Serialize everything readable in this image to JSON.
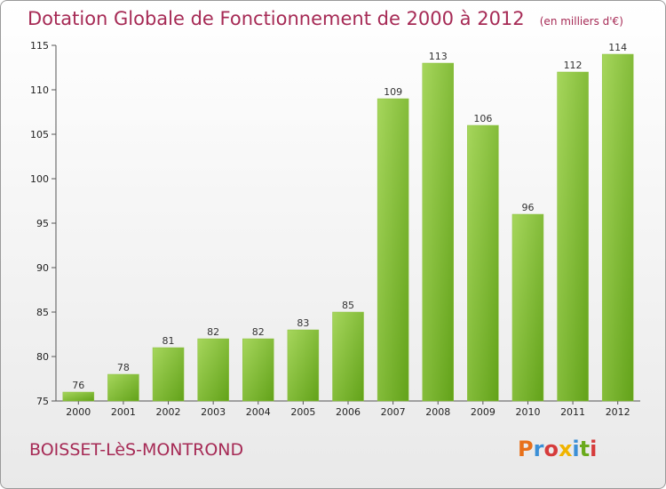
{
  "header": {
    "title": "Dotation Globale de Fonctionnement de 2000 à 2012",
    "subtitle": "(en milliers d'€)"
  },
  "footer": {
    "commune": "BOISSET-LèS-MONTROND",
    "logo": "Proxiti",
    "logo_colors": [
      "#e8701a",
      "#3b8fd6",
      "#d63b3b",
      "#f0b400",
      "#3b8fd6",
      "#6aaa1c",
      "#d63b3b"
    ]
  },
  "colors": {
    "bar_light": "#a6d65c",
    "bar_dark": "#62a219",
    "title": "#a62a55"
  },
  "chart_data": {
    "type": "bar",
    "title": "Dotation Globale de Fonctionnement de 2000 à 2012",
    "subtitle": "(en milliers d'€)",
    "xlabel": "",
    "ylabel": "",
    "categories": [
      "2000",
      "2001",
      "2002",
      "2003",
      "2004",
      "2005",
      "2006",
      "2007",
      "2008",
      "2009",
      "2010",
      "2011",
      "2012"
    ],
    "values": [
      76,
      78,
      81,
      82,
      82,
      83,
      85,
      109,
      113,
      106,
      96,
      112,
      114
    ],
    "ylim": [
      75,
      115
    ],
    "yticks": [
      75,
      80,
      85,
      90,
      95,
      100,
      105,
      110,
      115
    ],
    "grid": false,
    "legend": "none"
  }
}
